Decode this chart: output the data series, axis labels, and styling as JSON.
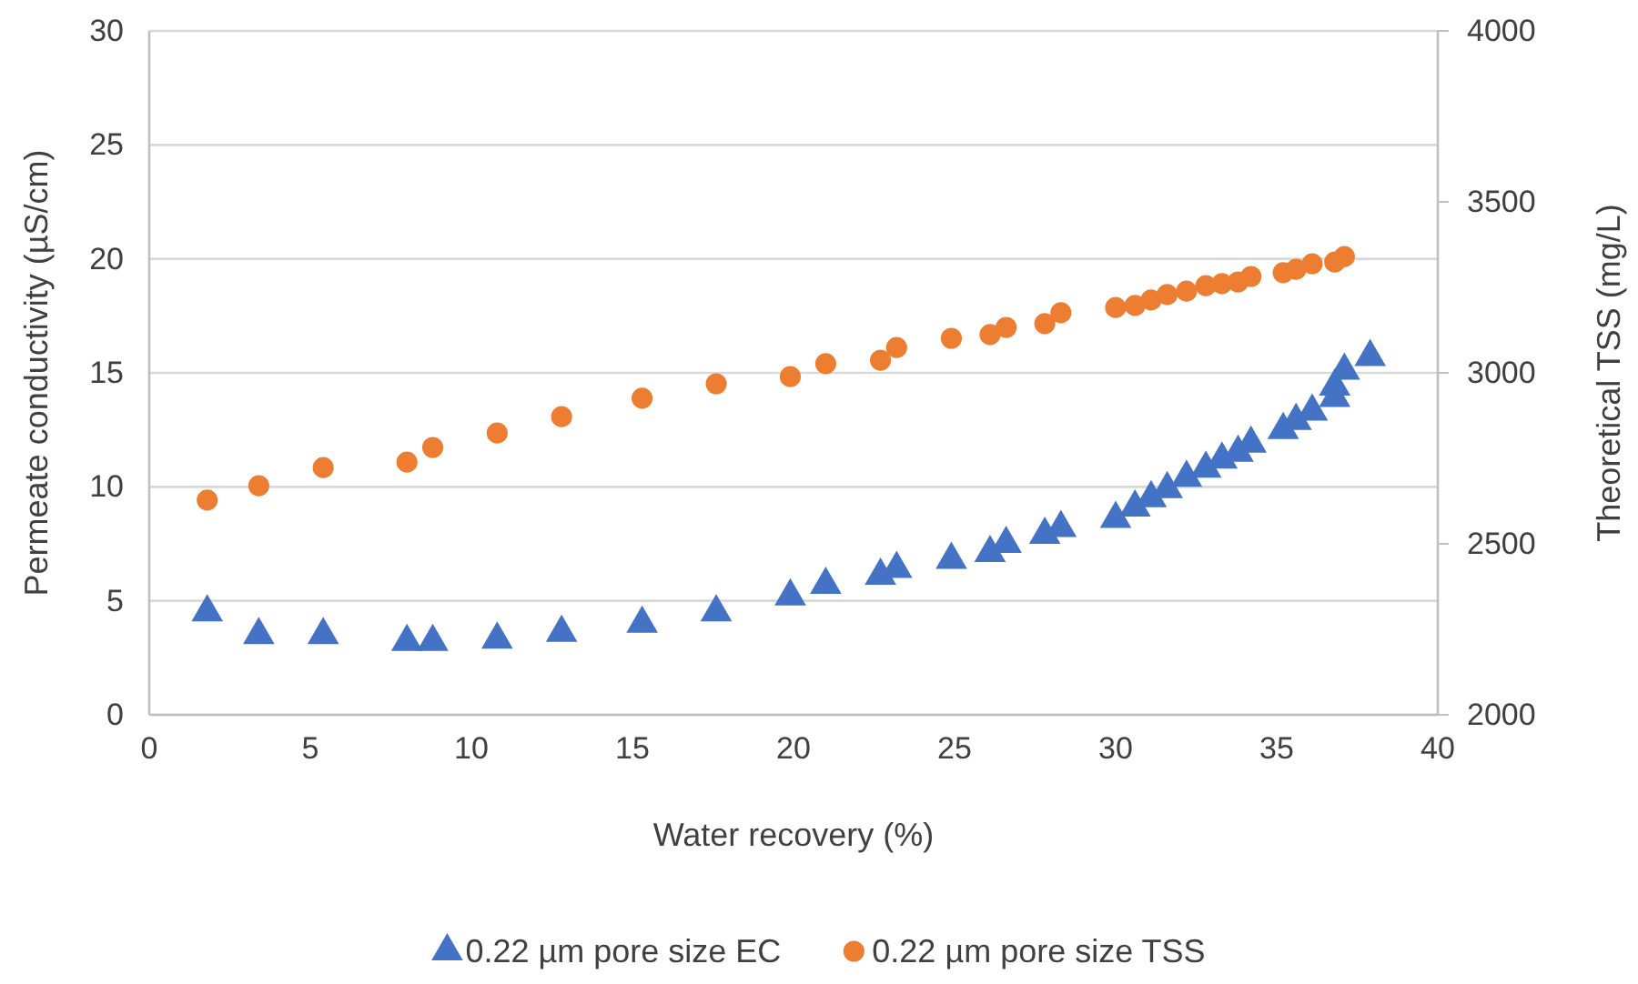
{
  "chart_data": {
    "type": "scatter",
    "xlabel": "Water recovery (%)",
    "ylabel": "Permeate conductivity (µS/cm)",
    "y2label": "Theoretical TSS (mg/L)",
    "xlim": [
      0,
      40
    ],
    "xticks": [
      0,
      5,
      10,
      15,
      20,
      25,
      30,
      35,
      40
    ],
    "ylim": [
      0,
      30
    ],
    "yticks": [
      0,
      5,
      10,
      15,
      20,
      25,
      30
    ],
    "y2lim": [
      2000,
      4000
    ],
    "y2ticks": [
      2000,
      2500,
      3000,
      3500,
      4000
    ],
    "grid": "y",
    "legend": "bottom",
    "series": [
      {
        "name": "0.22 µm pore size EC",
        "color": "#4472c4",
        "marker": "triangle",
        "x": [
          1.8,
          3.4,
          5.4,
          8.0,
          8.8,
          10.8,
          12.8,
          15.3,
          17.6,
          19.9,
          21.0,
          22.7,
          23.2,
          24.9,
          26.1,
          26.6,
          27.8,
          28.3,
          30.0,
          30.6,
          31.1,
          31.6,
          32.2,
          32.8,
          33.3,
          33.8,
          34.2,
          35.2,
          35.6,
          36.1,
          36.8,
          36.8,
          37.1,
          37.9
        ],
        "values": [
          4.5,
          3.5,
          3.5,
          3.2,
          3.2,
          3.3,
          3.6,
          4.0,
          4.5,
          5.2,
          5.7,
          6.1,
          6.4,
          6.8,
          7.1,
          7.5,
          7.9,
          8.2,
          8.6,
          9.1,
          9.5,
          9.9,
          10.4,
          10.8,
          11.2,
          11.5,
          11.9,
          12.5,
          12.9,
          13.3,
          13.9,
          14.4,
          15.1,
          15.7
        ]
      },
      {
        "name": "0.22 µm pore size TSS",
        "color": "#ed7d31",
        "marker": "circle",
        "axis": "y2",
        "x": [
          1.8,
          3.4,
          5.4,
          8.0,
          8.8,
          10.8,
          12.8,
          15.3,
          17.6,
          19.9,
          21.0,
          22.7,
          23.2,
          24.9,
          26.1,
          26.6,
          27.8,
          28.3,
          30.0,
          30.6,
          31.1,
          31.6,
          32.2,
          32.8,
          33.3,
          33.8,
          34.2,
          35.2,
          35.6,
          36.1,
          36.8,
          37.1
        ],
        "values": [
          2628,
          2670,
          2723,
          2739,
          2782,
          2824,
          2872,
          2926,
          2968,
          2989,
          3027,
          3037,
          3074,
          3101,
          3112,
          3133,
          3144,
          3176,
          3191,
          3197,
          3213,
          3229,
          3239,
          3255,
          3261,
          3266,
          3282,
          3293,
          3303,
          3319,
          3324,
          3340
        ]
      }
    ]
  }
}
